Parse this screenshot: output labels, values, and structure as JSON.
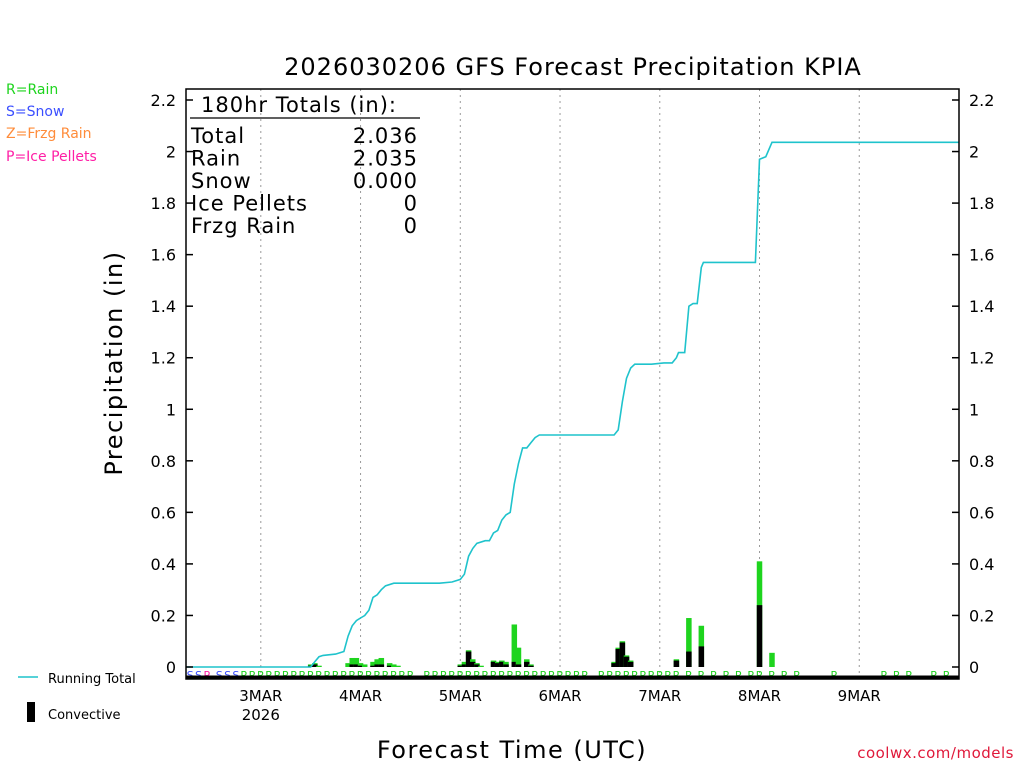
{
  "title": "2026030206 GFS Forecast Precipitation KPIA",
  "type_legend": [
    {
      "text": "R=Rain",
      "color": "#1ed41e"
    },
    {
      "text": "S=Snow",
      "color": "#3b4fff"
    },
    {
      "text": "Z=Frzg Rain",
      "color": "#ff8c3a"
    },
    {
      "text": "P=Ice Pellets",
      "color": "#ff1fa6"
    }
  ],
  "totals_box": {
    "heading": "180hr Totals (in):",
    "rows": [
      {
        "label": "Total",
        "value": "2.036"
      },
      {
        "label": "Rain",
        "value": "2.035"
      },
      {
        "label": "Snow",
        "value": "0.000"
      },
      {
        "label": "Ice Pellets",
        "value": "0"
      },
      {
        "label": "Frzg Rain",
        "value": "0"
      }
    ]
  },
  "series_legend": {
    "running_total_label": "Running Total",
    "convective_label": "Convective"
  },
  "footer": {
    "source": "coolwx.com/models"
  },
  "colors": {
    "running_total": "#1fc3cc",
    "rain_bar": "#1ed41e",
    "convective_bar": "#000000",
    "snow_marker": "#3b4fff",
    "rain_marker": "#1ed41e"
  },
  "chart_data": {
    "type": "bar",
    "title": "2026030206 GFS Forecast Precipitation KPIA",
    "xlabel": "Forecast Time (UTC)",
    "ylabel": "Precipitation (in)",
    "x_units": "forecast hour",
    "xlim": [
      0,
      186
    ],
    "ylim": [
      0,
      2.2
    ],
    "y_ticks": [
      0,
      0.2,
      0.4,
      0.6,
      0.8,
      1,
      1.2,
      1.4,
      1.6,
      1.8,
      2,
      2.2
    ],
    "y_tick_labels": [
      "0",
      "0.2",
      "0.4",
      "0.6",
      "0.8",
      "1",
      "1.2",
      "1.4",
      "1.6",
      "1.8",
      "2",
      "2.2"
    ],
    "x_ticks": [
      {
        "hour": 18,
        "label": "3MAR",
        "sublabel": "2026"
      },
      {
        "hour": 42,
        "label": "4MAR"
      },
      {
        "hour": 66,
        "label": "5MAR"
      },
      {
        "hour": 90,
        "label": "6MAR"
      },
      {
        "hour": 114,
        "label": "7MAR"
      },
      {
        "hour": 138,
        "label": "8MAR"
      },
      {
        "hour": 162,
        "label": "9MAR"
      }
    ],
    "grid": "vertical dotted at day boundaries",
    "running_total": [
      [
        0,
        0
      ],
      [
        30,
        0
      ],
      [
        31,
        0.02
      ],
      [
        32,
        0.04
      ],
      [
        33,
        0.045
      ],
      [
        36,
        0.05
      ],
      [
        38,
        0.06
      ],
      [
        39,
        0.12
      ],
      [
        40,
        0.16
      ],
      [
        41,
        0.18
      ],
      [
        42,
        0.19
      ],
      [
        43,
        0.2
      ],
      [
        44,
        0.22
      ],
      [
        45,
        0.27
      ],
      [
        46,
        0.28
      ],
      [
        47,
        0.3
      ],
      [
        48,
        0.315
      ],
      [
        50,
        0.325
      ],
      [
        61,
        0.325
      ],
      [
        64,
        0.33
      ],
      [
        66,
        0.34
      ],
      [
        67,
        0.36
      ],
      [
        68,
        0.43
      ],
      [
        69,
        0.46
      ],
      [
        70,
        0.48
      ],
      [
        72,
        0.49
      ],
      [
        73,
        0.49
      ],
      [
        74,
        0.52
      ],
      [
        75,
        0.53
      ],
      [
        76,
        0.57
      ],
      [
        77,
        0.59
      ],
      [
        78,
        0.6
      ],
      [
        79,
        0.71
      ],
      [
        80,
        0.79
      ],
      [
        81,
        0.85
      ],
      [
        82,
        0.85
      ],
      [
        83,
        0.87
      ],
      [
        84,
        0.89
      ],
      [
        85,
        0.9
      ],
      [
        103,
        0.9
      ],
      [
        104,
        0.92
      ],
      [
        105,
        1.03
      ],
      [
        106,
        1.12
      ],
      [
        107,
        1.16
      ],
      [
        108,
        1.175
      ],
      [
        112,
        1.175
      ],
      [
        115,
        1.18
      ],
      [
        117,
        1.18
      ],
      [
        118,
        1.2
      ],
      [
        118.5,
        1.22
      ],
      [
        120,
        1.22
      ],
      [
        121,
        1.4
      ],
      [
        122,
        1.41
      ],
      [
        123,
        1.41
      ],
      [
        124,
        1.55
      ],
      [
        124.5,
        1.57
      ],
      [
        137,
        1.57
      ],
      [
        138,
        1.97
      ],
      [
        139.5,
        1.98
      ],
      [
        141,
        2.036
      ],
      [
        186,
        2.036
      ]
    ],
    "bars": [
      {
        "hour": 30,
        "total": 0.01,
        "convective": 0.005
      },
      {
        "hour": 31,
        "total": 0.015,
        "convective": 0.01
      },
      {
        "hour": 32,
        "total": 0.005,
        "convective": 0
      },
      {
        "hour": 39,
        "total": 0.015,
        "convective": 0
      },
      {
        "hour": 40,
        "total": 0.035,
        "convective": 0.01
      },
      {
        "hour": 41,
        "total": 0.035,
        "convective": 0.01
      },
      {
        "hour": 42,
        "total": 0.015,
        "convective": 0.005
      },
      {
        "hour": 43,
        "total": 0.01,
        "convective": 0
      },
      {
        "hour": 45,
        "total": 0.02,
        "convective": 0.005
      },
      {
        "hour": 46,
        "total": 0.03,
        "convective": 0.01
      },
      {
        "hour": 47,
        "total": 0.035,
        "convective": 0.01
      },
      {
        "hour": 49,
        "total": 0.015,
        "convective": 0.005
      },
      {
        "hour": 50,
        "total": 0.01,
        "convective": 0
      },
      {
        "hour": 51,
        "total": 0.005,
        "convective": 0
      },
      {
        "hour": 66,
        "total": 0.01,
        "convective": 0.005
      },
      {
        "hour": 67,
        "total": 0.02,
        "convective": 0.01
      },
      {
        "hour": 68,
        "total": 0.065,
        "convective": 0.06
      },
      {
        "hour": 69,
        "total": 0.03,
        "convective": 0.02
      },
      {
        "hour": 70,
        "total": 0.015,
        "convective": 0.01
      },
      {
        "hour": 71,
        "total": 0.005,
        "convective": 0
      },
      {
        "hour": 74,
        "total": 0.025,
        "convective": 0.02
      },
      {
        "hour": 75,
        "total": 0.02,
        "convective": 0.015
      },
      {
        "hour": 76,
        "total": 0.025,
        "convective": 0.02
      },
      {
        "hour": 77,
        "total": 0.02,
        "convective": 0.01
      },
      {
        "hour": 79,
        "total": 0.165,
        "convective": 0.02
      },
      {
        "hour": 80,
        "total": 0.075,
        "convective": 0.01
      },
      {
        "hour": 82,
        "total": 0.03,
        "convective": 0.02
      },
      {
        "hour": 83,
        "total": 0.01,
        "convective": 0.005
      },
      {
        "hour": 103,
        "total": 0.02,
        "convective": 0.015
      },
      {
        "hour": 104,
        "total": 0.075,
        "convective": 0.07
      },
      {
        "hour": 105,
        "total": 0.1,
        "convective": 0.095
      },
      {
        "hour": 106,
        "total": 0.045,
        "convective": 0.04
      },
      {
        "hour": 107,
        "total": 0.025,
        "convective": 0.02
      },
      {
        "hour": 118,
        "total": 0.03,
        "convective": 0.025
      },
      {
        "hour": 121,
        "total": 0.19,
        "convective": 0.06
      },
      {
        "hour": 124,
        "total": 0.16,
        "convective": 0.08
      },
      {
        "hour": 138,
        "total": 0.41,
        "convective": 0.24
      },
      {
        "hour": 141,
        "total": 0.055,
        "convective": 0
      }
    ],
    "precip_type_markers": [
      {
        "hour": 1,
        "type": "S"
      },
      {
        "hour": 3,
        "type": "S"
      },
      {
        "hour": 5,
        "type": "P"
      },
      {
        "hour": 8,
        "type": "S"
      },
      {
        "hour": 10,
        "type": "S"
      },
      {
        "hour": 12,
        "type": "S"
      },
      {
        "hour": 14,
        "type": "R"
      },
      {
        "hour": 16,
        "type": "R"
      },
      {
        "hour": 18,
        "type": "R"
      },
      {
        "hour": 20,
        "type": "R"
      },
      {
        "hour": 22,
        "type": "R"
      },
      {
        "hour": 24,
        "type": "R"
      },
      {
        "hour": 26,
        "type": "R"
      },
      {
        "hour": 28,
        "type": "R"
      },
      {
        "hour": 30,
        "type": "R"
      },
      {
        "hour": 32,
        "type": "R"
      },
      {
        "hour": 34,
        "type": "R"
      },
      {
        "hour": 36,
        "type": "R"
      },
      {
        "hour": 38,
        "type": "R"
      },
      {
        "hour": 40,
        "type": "R"
      },
      {
        "hour": 42,
        "type": "R"
      },
      {
        "hour": 44,
        "type": "R"
      },
      {
        "hour": 46,
        "type": "R"
      },
      {
        "hour": 48,
        "type": "R"
      },
      {
        "hour": 50,
        "type": "R"
      },
      {
        "hour": 52,
        "type": "R"
      },
      {
        "hour": 54,
        "type": "R"
      },
      {
        "hour": 58,
        "type": "R"
      },
      {
        "hour": 60,
        "type": "R"
      },
      {
        "hour": 62,
        "type": "R"
      },
      {
        "hour": 64,
        "type": "R"
      },
      {
        "hour": 66,
        "type": "R"
      },
      {
        "hour": 68,
        "type": "R"
      },
      {
        "hour": 70,
        "type": "R"
      },
      {
        "hour": 72,
        "type": "R"
      },
      {
        "hour": 74,
        "type": "R"
      },
      {
        "hour": 76,
        "type": "R"
      },
      {
        "hour": 78,
        "type": "R"
      },
      {
        "hour": 80,
        "type": "R"
      },
      {
        "hour": 82,
        "type": "R"
      },
      {
        "hour": 84,
        "type": "R"
      },
      {
        "hour": 86,
        "type": "R"
      },
      {
        "hour": 88,
        "type": "R"
      },
      {
        "hour": 90,
        "type": "R"
      },
      {
        "hour": 92,
        "type": "R"
      },
      {
        "hour": 94,
        "type": "R"
      },
      {
        "hour": 96,
        "type": "R"
      },
      {
        "hour": 100,
        "type": "R"
      },
      {
        "hour": 102,
        "type": "R"
      },
      {
        "hour": 104,
        "type": "R"
      },
      {
        "hour": 106,
        "type": "R"
      },
      {
        "hour": 108,
        "type": "R"
      },
      {
        "hour": 110,
        "type": "R"
      },
      {
        "hour": 112,
        "type": "R"
      },
      {
        "hour": 114,
        "type": "R"
      },
      {
        "hour": 116,
        "type": "R"
      },
      {
        "hour": 118,
        "type": "R"
      },
      {
        "hour": 121,
        "type": "R"
      },
      {
        "hour": 124,
        "type": "R"
      },
      {
        "hour": 127,
        "type": "R"
      },
      {
        "hour": 130,
        "type": "R"
      },
      {
        "hour": 133,
        "type": "R"
      },
      {
        "hour": 136,
        "type": "R"
      },
      {
        "hour": 138,
        "type": "R"
      },
      {
        "hour": 141,
        "type": "R"
      },
      {
        "hour": 144,
        "type": "R"
      },
      {
        "hour": 147,
        "type": "R"
      },
      {
        "hour": 156,
        "type": "R"
      },
      {
        "hour": 168,
        "type": "R"
      },
      {
        "hour": 171,
        "type": "R"
      },
      {
        "hour": 174,
        "type": "R"
      },
      {
        "hour": 180,
        "type": "R"
      },
      {
        "hour": 183,
        "type": "R"
      }
    ]
  }
}
